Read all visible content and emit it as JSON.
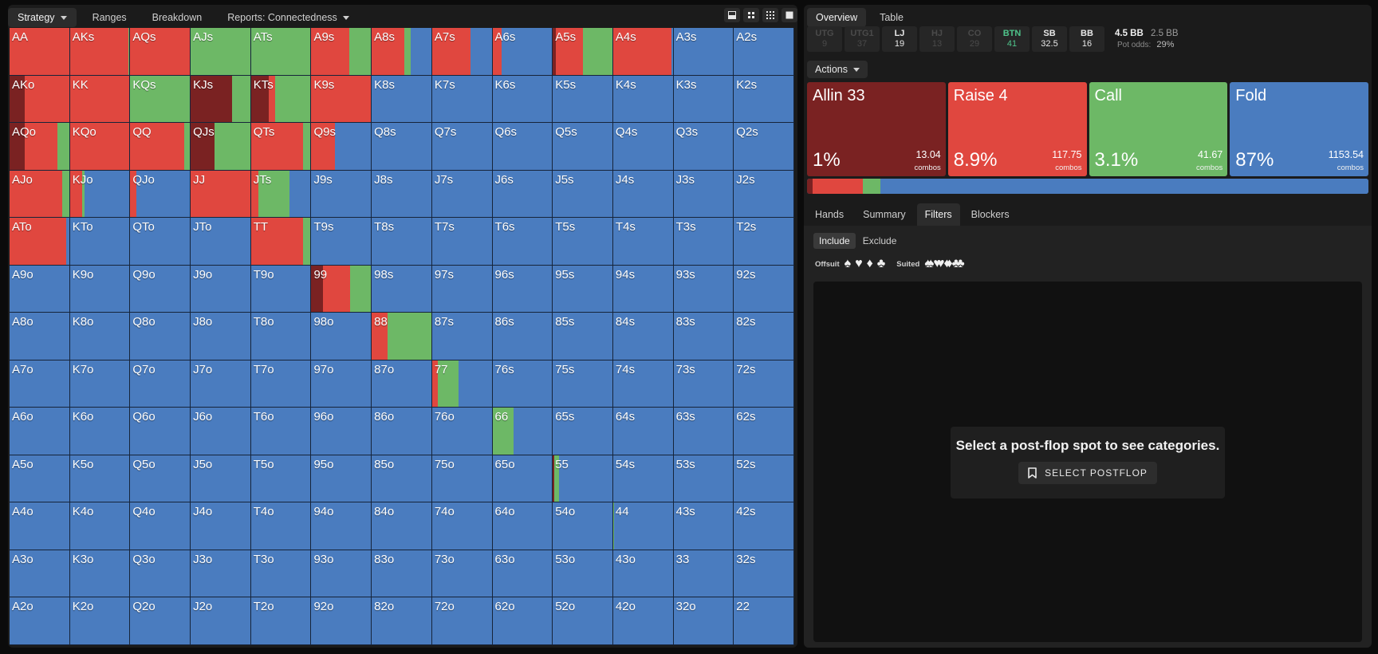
{
  "left_tabs": [
    {
      "label": "Strategy",
      "active": true,
      "dropdown": true
    },
    {
      "label": "Ranges",
      "active": false,
      "dropdown": false
    },
    {
      "label": "Breakdown",
      "active": false,
      "dropdown": false
    },
    {
      "label": "Reports: Connectedness",
      "active": false,
      "dropdown": true
    }
  ],
  "view_icons": [
    "single-view-icon",
    "quad-view-icon",
    "grid-view-icon",
    "full-view-icon"
  ],
  "colors": {
    "allin": "#7a2222",
    "raise": "#e0473f",
    "call": "#6db866",
    "fold": "#4a7cbf"
  },
  "grid": {
    "rows": [
      [
        "AA",
        "AKs",
        "AQs",
        "AJs",
        "ATs",
        "A9s",
        "A8s",
        "A7s",
        "A6s",
        "A5s",
        "A4s",
        "A3s",
        "A2s"
      ],
      [
        "AKo",
        "KK",
        "KQs",
        "KJs",
        "KTs",
        "K9s",
        "K8s",
        "K7s",
        "K6s",
        "K5s",
        "K4s",
        "K3s",
        "K2s"
      ],
      [
        "AQo",
        "KQo",
        "QQ",
        "QJs",
        "QTs",
        "Q9s",
        "Q8s",
        "Q7s",
        "Q6s",
        "Q5s",
        "Q4s",
        "Q3s",
        "Q2s"
      ],
      [
        "AJo",
        "KJo",
        "QJo",
        "JJ",
        "JTs",
        "J9s",
        "J8s",
        "J7s",
        "J6s",
        "J5s",
        "J4s",
        "J3s",
        "J2s"
      ],
      [
        "ATo",
        "KTo",
        "QTo",
        "JTo",
        "TT",
        "T9s",
        "T8s",
        "T7s",
        "T6s",
        "T5s",
        "T4s",
        "T3s",
        "T2s"
      ],
      [
        "A9o",
        "K9o",
        "Q9o",
        "J9o",
        "T9o",
        "99",
        "98s",
        "97s",
        "96s",
        "95s",
        "94s",
        "93s",
        "92s"
      ],
      [
        "A8o",
        "K8o",
        "Q8o",
        "J8o",
        "T8o",
        "98o",
        "88",
        "87s",
        "86s",
        "85s",
        "84s",
        "83s",
        "82s"
      ],
      [
        "A7o",
        "K7o",
        "Q7o",
        "J7o",
        "T7o",
        "97o",
        "87o",
        "77",
        "76s",
        "75s",
        "74s",
        "73s",
        "72s"
      ],
      [
        "A6o",
        "K6o",
        "Q6o",
        "J6o",
        "T6o",
        "96o",
        "86o",
        "76o",
        "66",
        "65s",
        "64s",
        "63s",
        "62s"
      ],
      [
        "A5o",
        "K5o",
        "Q5o",
        "J5o",
        "T5o",
        "95o",
        "85o",
        "75o",
        "65o",
        "55",
        "54s",
        "53s",
        "52s"
      ],
      [
        "A4o",
        "K4o",
        "Q4o",
        "J4o",
        "T4o",
        "94o",
        "84o",
        "74o",
        "64o",
        "54o",
        "44",
        "43s",
        "42s"
      ],
      [
        "A3o",
        "K3o",
        "Q3o",
        "J3o",
        "T3o",
        "93o",
        "83o",
        "73o",
        "63o",
        "53o",
        "43o",
        "33",
        "32s"
      ],
      [
        "A2o",
        "K2o",
        "Q2o",
        "J2o",
        "T2o",
        "92o",
        "82o",
        "72o",
        "62o",
        "52o",
        "42o",
        "32o",
        "22"
      ]
    ],
    "strategies": {
      "AA": {
        "allin": 0,
        "raise": 100,
        "call": 0,
        "fold": 0
      },
      "AKs": {
        "allin": 0,
        "raise": 98,
        "call": 2,
        "fold": 0
      },
      "AQs": {
        "allin": 0,
        "raise": 100,
        "call": 0,
        "fold": 0
      },
      "AJs": {
        "allin": 0,
        "raise": 0,
        "call": 100,
        "fold": 0
      },
      "ATs": {
        "allin": 0,
        "raise": 0,
        "call": 100,
        "fold": 0
      },
      "A9s": {
        "allin": 0,
        "raise": 63,
        "call": 37,
        "fold": 0
      },
      "A8s": {
        "allin": 0,
        "raise": 55,
        "call": 10,
        "fold": 35
      },
      "A7s": {
        "allin": 0,
        "raise": 65,
        "call": 0,
        "fold": 35
      },
      "A6s": {
        "allin": 0,
        "raise": 15,
        "call": 0,
        "fold": 85
      },
      "A5s": {
        "allin": 5,
        "raise": 45,
        "call": 50,
        "fold": 0
      },
      "A4s": {
        "allin": 0,
        "raise": 98,
        "call": 0,
        "fold": 2
      },
      "AKo": {
        "allin": 25,
        "raise": 75,
        "call": 0,
        "fold": 0
      },
      "KK": {
        "allin": 0,
        "raise": 100,
        "call": 0,
        "fold": 0
      },
      "KQs": {
        "allin": 0,
        "raise": 0,
        "call": 100,
        "fold": 0
      },
      "KJs": {
        "allin": 70,
        "raise": 0,
        "call": 30,
        "fold": 0
      },
      "KTs": {
        "allin": 30,
        "raise": 10,
        "call": 60,
        "fold": 0
      },
      "K9s": {
        "allin": 0,
        "raise": 100,
        "call": 0,
        "fold": 0
      },
      "AQo": {
        "allin": 25,
        "raise": 55,
        "call": 20,
        "fold": 0
      },
      "KQo": {
        "allin": 0,
        "raise": 100,
        "call": 0,
        "fold": 0
      },
      "QQ": {
        "allin": 0,
        "raise": 90,
        "call": 10,
        "fold": 0
      },
      "QJs": {
        "allin": 40,
        "raise": 0,
        "call": 60,
        "fold": 0
      },
      "QTs": {
        "allin": 0,
        "raise": 88,
        "call": 12,
        "fold": 0
      },
      "Q9s": {
        "allin": 0,
        "raise": 40,
        "call": 0,
        "fold": 60
      },
      "AJo": {
        "allin": 0,
        "raise": 88,
        "call": 12,
        "fold": 0
      },
      "KJo": {
        "allin": 0,
        "raise": 20,
        "call": 5,
        "fold": 75
      },
      "QJo": {
        "allin": 0,
        "raise": 10,
        "call": 0,
        "fold": 90
      },
      "JJ": {
        "allin": 0,
        "raise": 100,
        "call": 0,
        "fold": 0
      },
      "JTs": {
        "allin": 0,
        "raise": 13,
        "call": 52,
        "fold": 35
      },
      "ATo": {
        "allin": 0,
        "raise": 95,
        "call": 0,
        "fold": 5
      },
      "TT": {
        "allin": 0,
        "raise": 88,
        "call": 12,
        "fold": 0
      },
      "99": {
        "allin": 20,
        "raise": 45,
        "call": 35,
        "fold": 0
      },
      "88": {
        "allin": 0,
        "raise": 26,
        "call": 74,
        "fold": 0
      },
      "77": {
        "allin": 0,
        "raise": 10,
        "call": 35,
        "fold": 55
      },
      "66": {
        "allin": 0,
        "raise": 0,
        "call": 35,
        "fold": 65
      },
      "55": {
        "allin": 3,
        "raise": 0,
        "call": 7,
        "fold": 90
      },
      "44": {
        "allin": 0,
        "raise": 0,
        "call": 2,
        "fold": 98
      }
    }
  },
  "right_tabs": [
    {
      "label": "Overview",
      "active": true
    },
    {
      "label": "Table",
      "active": false
    }
  ],
  "positions": [
    {
      "name": "UTG",
      "stack": "9",
      "state": "folded"
    },
    {
      "name": "UTG1",
      "stack": "37",
      "state": "folded"
    },
    {
      "name": "LJ",
      "stack": "19",
      "state": "live"
    },
    {
      "name": "HJ",
      "stack": "13",
      "state": "folded"
    },
    {
      "name": "CO",
      "stack": "29",
      "state": "folded"
    },
    {
      "name": "BTN",
      "stack": "41",
      "state": "btn"
    },
    {
      "name": "SB",
      "stack": "32.5",
      "state": "live"
    },
    {
      "name": "BB",
      "stack": "16",
      "state": "live"
    }
  ],
  "pot": {
    "bet": "4.5 BB",
    "pot": "2.5 BB",
    "pot_odds_label": "Pot odds:",
    "pot_odds_value": "29%"
  },
  "actions_dropdown": "Actions",
  "actions": [
    {
      "name": "Allin 33",
      "percent": "1%",
      "pct": 1,
      "combos": "13.04",
      "combos_label": "combos",
      "color": "#7a2222"
    },
    {
      "name": "Raise 4",
      "percent": "8.9%",
      "pct": 8.9,
      "combos": "117.75",
      "combos_label": "combos",
      "color": "#e0473f"
    },
    {
      "name": "Call",
      "percent": "3.1%",
      "pct": 3.1,
      "combos": "41.67",
      "combos_label": "combos",
      "color": "#6db866"
    },
    {
      "name": "Fold",
      "percent": "87%",
      "pct": 87,
      "combos": "1153.54",
      "combos_label": "combos",
      "color": "#4a7cbf"
    }
  ],
  "sub_tabs": [
    {
      "label": "Hands",
      "active": false
    },
    {
      "label": "Summary",
      "active": false
    },
    {
      "label": "Filters",
      "active": true
    },
    {
      "label": "Blockers",
      "active": false
    }
  ],
  "filters": {
    "include_label": "Include",
    "exclude_label": "Exclude",
    "offsuit_label": "Offsuit",
    "suited_label": "Suited",
    "suits": [
      "♠",
      "♥",
      "♦",
      "♣"
    ]
  },
  "categories": {
    "message": "Select a post-flop spot to see categories.",
    "button_label": "SELECT POSTFLOP"
  }
}
